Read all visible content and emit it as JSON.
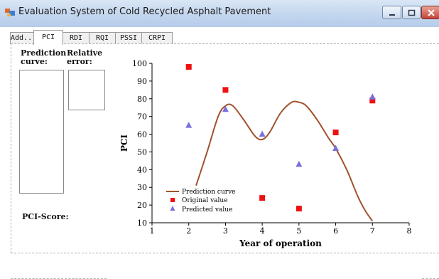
{
  "window": {
    "title": "Evaluation System of Cold Recycled Asphalt Pavement",
    "icons": [
      "app-icon",
      "minimize-icon",
      "maximize-icon",
      "close-icon"
    ]
  },
  "tabs": [
    {
      "label": "Add..."
    },
    {
      "label": "PCI",
      "active": true
    },
    {
      "label": "RDI"
    },
    {
      "label": "RQI"
    },
    {
      "label": "PSSI"
    },
    {
      "label": "CRPI"
    }
  ],
  "panel": {
    "prediction_curve_label": [
      "Prediction",
      "curve:"
    ],
    "relative_error_label": [
      "Relative",
      "error:"
    ],
    "pci_score_label": "PCI-Score:"
  },
  "colors": {
    "curve": "#a0522d",
    "original": "#ee1111",
    "predicted": "#7a70dd"
  },
  "chart_data": {
    "type": "scatter",
    "xlabel": "Year of operation",
    "ylabel": "PCI",
    "xlim": [
      1,
      8
    ],
    "ylim": [
      10,
      100
    ],
    "xticks": [
      1,
      2,
      3,
      4,
      5,
      6,
      7,
      8
    ],
    "yticks": [
      10,
      20,
      30,
      40,
      50,
      60,
      70,
      80,
      90,
      100
    ],
    "legend_position": "bottom-left",
    "series": [
      {
        "name": "Prediction curve",
        "kind": "line",
        "x": [
          2.2,
          2.5,
          2.8,
          3.0,
          3.2,
          3.5,
          3.8,
          4.0,
          4.2,
          4.5,
          4.8,
          5.0,
          5.2,
          5.5,
          5.8,
          6.0,
          6.3,
          6.6,
          6.8,
          7.0
        ],
        "y": [
          31,
          50,
          70,
          76,
          76,
          68,
          59,
          57,
          61,
          72,
          78,
          78,
          76,
          68,
          58,
          52,
          40,
          25,
          17,
          11
        ]
      },
      {
        "name": "Original value",
        "kind": "marker",
        "x": [
          2,
          3,
          4,
          5,
          6,
          7
        ],
        "y": [
          98,
          85,
          24,
          18,
          61,
          79
        ]
      },
      {
        "name": "Predicted value",
        "kind": "marker",
        "x": [
          2,
          3,
          4,
          5,
          6,
          7
        ],
        "y": [
          65,
          74,
          60,
          43,
          52,
          81
        ]
      }
    ]
  }
}
